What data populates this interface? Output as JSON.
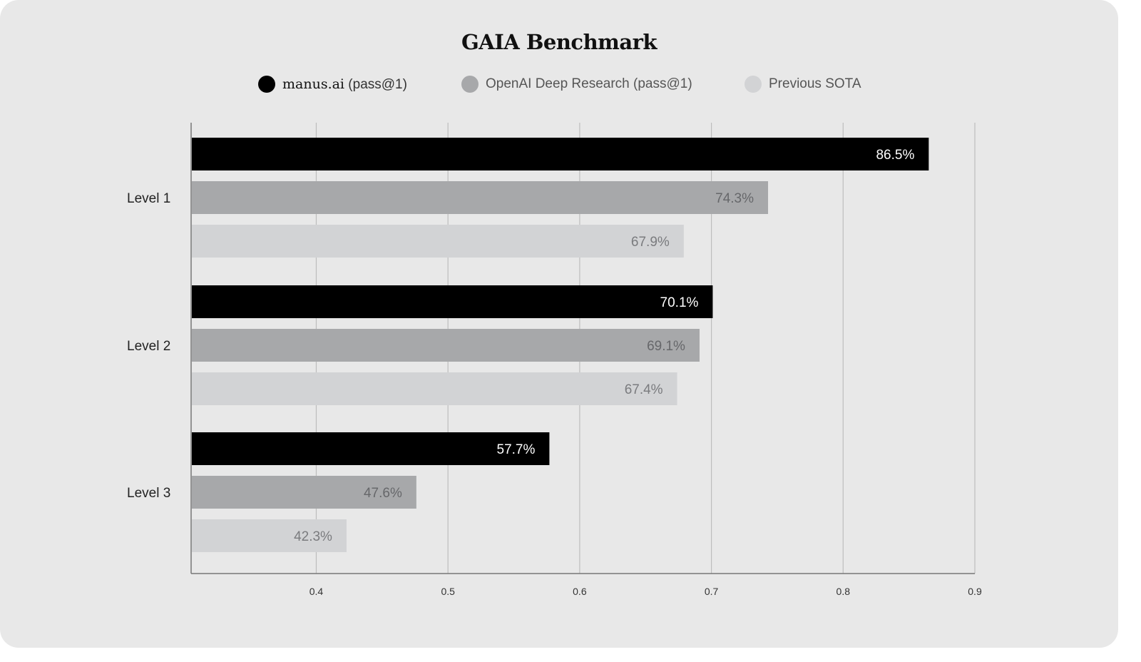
{
  "chart_data": {
    "type": "bar",
    "orientation": "horizontal",
    "title": "GAIA Benchmark",
    "categories": [
      "Level 1",
      "Level 2",
      "Level 3"
    ],
    "series": [
      {
        "name": "manus.ai (pass@1)",
        "color": "#000000",
        "label_color": "#ffffff",
        "values": [
          0.865,
          0.701,
          0.577
        ],
        "labels": [
          "86.5%",
          "70.1%",
          "57.7%"
        ]
      },
      {
        "name": "OpenAI Deep Research (pass@1)",
        "color": "#a7a8aa",
        "label_color": "#66676a",
        "values": [
          0.743,
          0.691,
          0.476
        ],
        "labels": [
          "74.3%",
          "69.1%",
          "47.6%"
        ]
      },
      {
        "name": "Previous SOTA",
        "color": "#d2d3d5",
        "label_color": "#7a7b7e",
        "values": [
          0.679,
          0.674,
          0.423
        ],
        "labels": [
          "67.9%",
          "67.4%",
          "42.3%"
        ]
      }
    ],
    "xticks": [
      "0.4",
      "0.5",
      "0.6",
      "0.7",
      "0.8",
      "0.9"
    ],
    "xlim": [
      0.305,
      0.9
    ],
    "grid": true,
    "legend_position": "top-center",
    "xlabel": "",
    "ylabel": ""
  },
  "legend": {
    "manus_name": "manus.ai",
    "manus_suffix": "(pass@1)",
    "openai": "OpenAI Deep Research (pass@1)",
    "sota": "Previous SOTA"
  }
}
